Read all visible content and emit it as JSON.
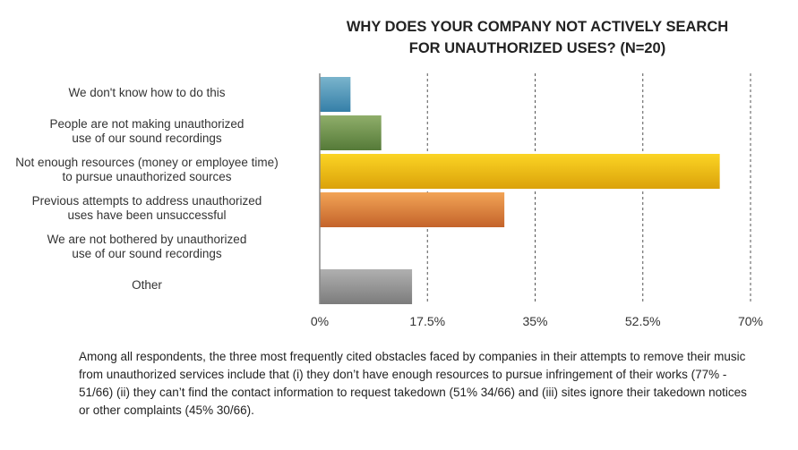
{
  "chart_data": {
    "type": "bar",
    "orientation": "horizontal",
    "title_lines": [
      "WHY DOES YOUR COMPANY NOT ACTIVELY SEARCH",
      "FOR UNAUTHORIZED USES? (N=20)"
    ],
    "categories": [
      [
        "We don't know how to do this"
      ],
      [
        "People are not making unauthorized",
        "use of our sound recordings"
      ],
      [
        "Not enough resources (money or employee time)",
        "to pursue unauthorized sources"
      ],
      [
        "Previous attempts to address unauthorized",
        "uses have been unsuccessful"
      ],
      [
        "We are not bothered by unauthorized",
        "use of our sound recordings"
      ],
      [
        "Other"
      ]
    ],
    "values": [
      5,
      10,
      65,
      30,
      0,
      15
    ],
    "colors": [
      [
        "#7ab4cc",
        "#357fa8"
      ],
      [
        "#8fae6a",
        "#557a38"
      ],
      [
        "#fbd424",
        "#dba20a"
      ],
      [
        "#f2a456",
        "#c4632a"
      ],
      [
        "#cccccc",
        "#999999"
      ],
      [
        "#b0b0b0",
        "#7c7c7c"
      ]
    ],
    "xlim": [
      0,
      70
    ],
    "ticks": [
      0,
      17.5,
      35,
      52.5,
      70
    ],
    "tick_labels": [
      "0%",
      "17.5%",
      "35%",
      "52.5%",
      "70%"
    ],
    "grid": "vertical dashed"
  },
  "caption": "Among all respondents, the three most frequently cited obstacles faced by companies in their attempts to remove their music from unauthorized services include that (i) they don’t have enough resources to pursue infringement of their works (77% - 51/66) (ii) they can’t find the contact information to request takedown (51% 34/66) and (iii) sites ignore their takedown notices or other complaints (45% 30/66)."
}
